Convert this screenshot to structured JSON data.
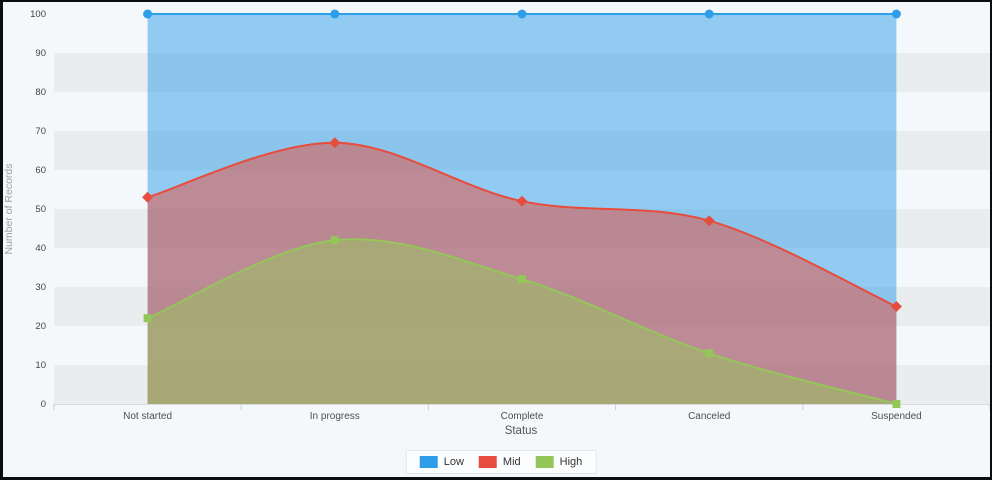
{
  "chart_data": {
    "type": "area",
    "title": "",
    "xlabel": "Status",
    "ylabel": "Number of Records",
    "categories": [
      "Not started",
      "In progress",
      "Complete",
      "Canceled",
      "Suspended"
    ],
    "series": [
      {
        "name": "Low",
        "values": [
          100,
          100,
          100,
          100,
          100
        ],
        "color": "#2F9EE8",
        "marker": "circle"
      },
      {
        "name": "Mid",
        "values": [
          53,
          67,
          52,
          47,
          25
        ],
        "color": "#E74C3C",
        "marker": "diamond"
      },
      {
        "name": "High",
        "values": [
          22,
          42,
          32,
          13,
          0
        ],
        "color": "#95C65A",
        "marker": "square"
      }
    ],
    "ylim": [
      0,
      100
    ],
    "ytick_step": 10,
    "fill_alpha": 0.5,
    "smooth": true,
    "legend_position": "bottom",
    "background_bands": true,
    "theme": {
      "background": "#f5f8fa",
      "band_light": "#f5f8fa",
      "band_dark": "#e9edee",
      "axis_tick_color": "#c9ced3",
      "axis_line_color": "#d7dce0",
      "y_tick_label_color": "#444444",
      "x_tick_label_color": "#4a5056",
      "axis_title_color": "#9aa2a9"
    }
  }
}
